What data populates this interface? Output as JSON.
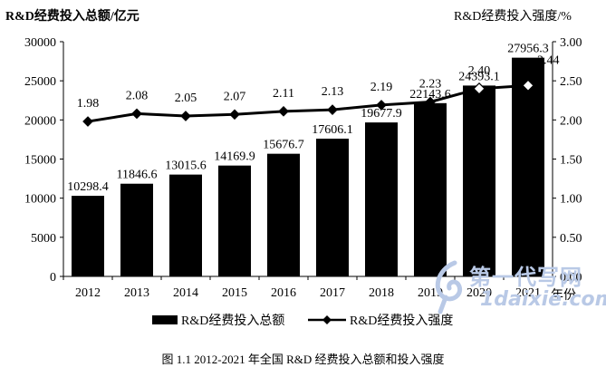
{
  "chart_data": {
    "type": "bar+line",
    "categories": [
      "2012",
      "2013",
      "2014",
      "2015",
      "2016",
      "2017",
      "2018",
      "2019",
      "2020",
      "2021"
    ],
    "series": [
      {
        "name": "R&D经费投入总额",
        "type": "bar",
        "axis": "left",
        "color": "#000000",
        "values": [
          10298.4,
          11846.6,
          13015.6,
          14169.9,
          15676.7,
          17606.1,
          19677.9,
          22143.6,
          24393.1,
          27956.3
        ],
        "labels": [
          "10298.4",
          "11846.6",
          "13015.6",
          "14169.9",
          "15676.7",
          "17606.1",
          "19677.9",
          "22143.6",
          "24393.1",
          "27956.3"
        ]
      },
      {
        "name": "R&D经费投入强度",
        "type": "line",
        "axis": "right",
        "color": "#000000",
        "values": [
          1.98,
          2.08,
          2.05,
          2.07,
          2.11,
          2.13,
          2.19,
          2.23,
          2.4,
          2.44
        ],
        "labels": [
          "1.98",
          "2.08",
          "2.05",
          "2.07",
          "2.11",
          "2.13",
          "2.19",
          "2.23",
          "2.40",
          "2.44"
        ]
      }
    ],
    "left_axis": {
      "label": "R&D经费投入总额/亿元",
      "ylim": [
        0,
        30000
      ],
      "ticks": [
        "0",
        "5000",
        "10000",
        "15000",
        "20000",
        "25000",
        "30000"
      ]
    },
    "right_axis": {
      "label": "R&D经费投入强度/%",
      "ylim": [
        0,
        3.0
      ],
      "ticks": [
        "0.00",
        "0.50",
        "1.00",
        "1.50",
        "2.00",
        "2.50",
        "3.00"
      ]
    },
    "x_unit": "年份",
    "grid": false,
    "legend_position": "bottom"
  },
  "caption": "图 1.1 2012-2021 年全国 R&D 经费投入总额和投入强度",
  "watermark": {
    "line1": "第一代写网",
    "line2": "1daixie.com"
  }
}
